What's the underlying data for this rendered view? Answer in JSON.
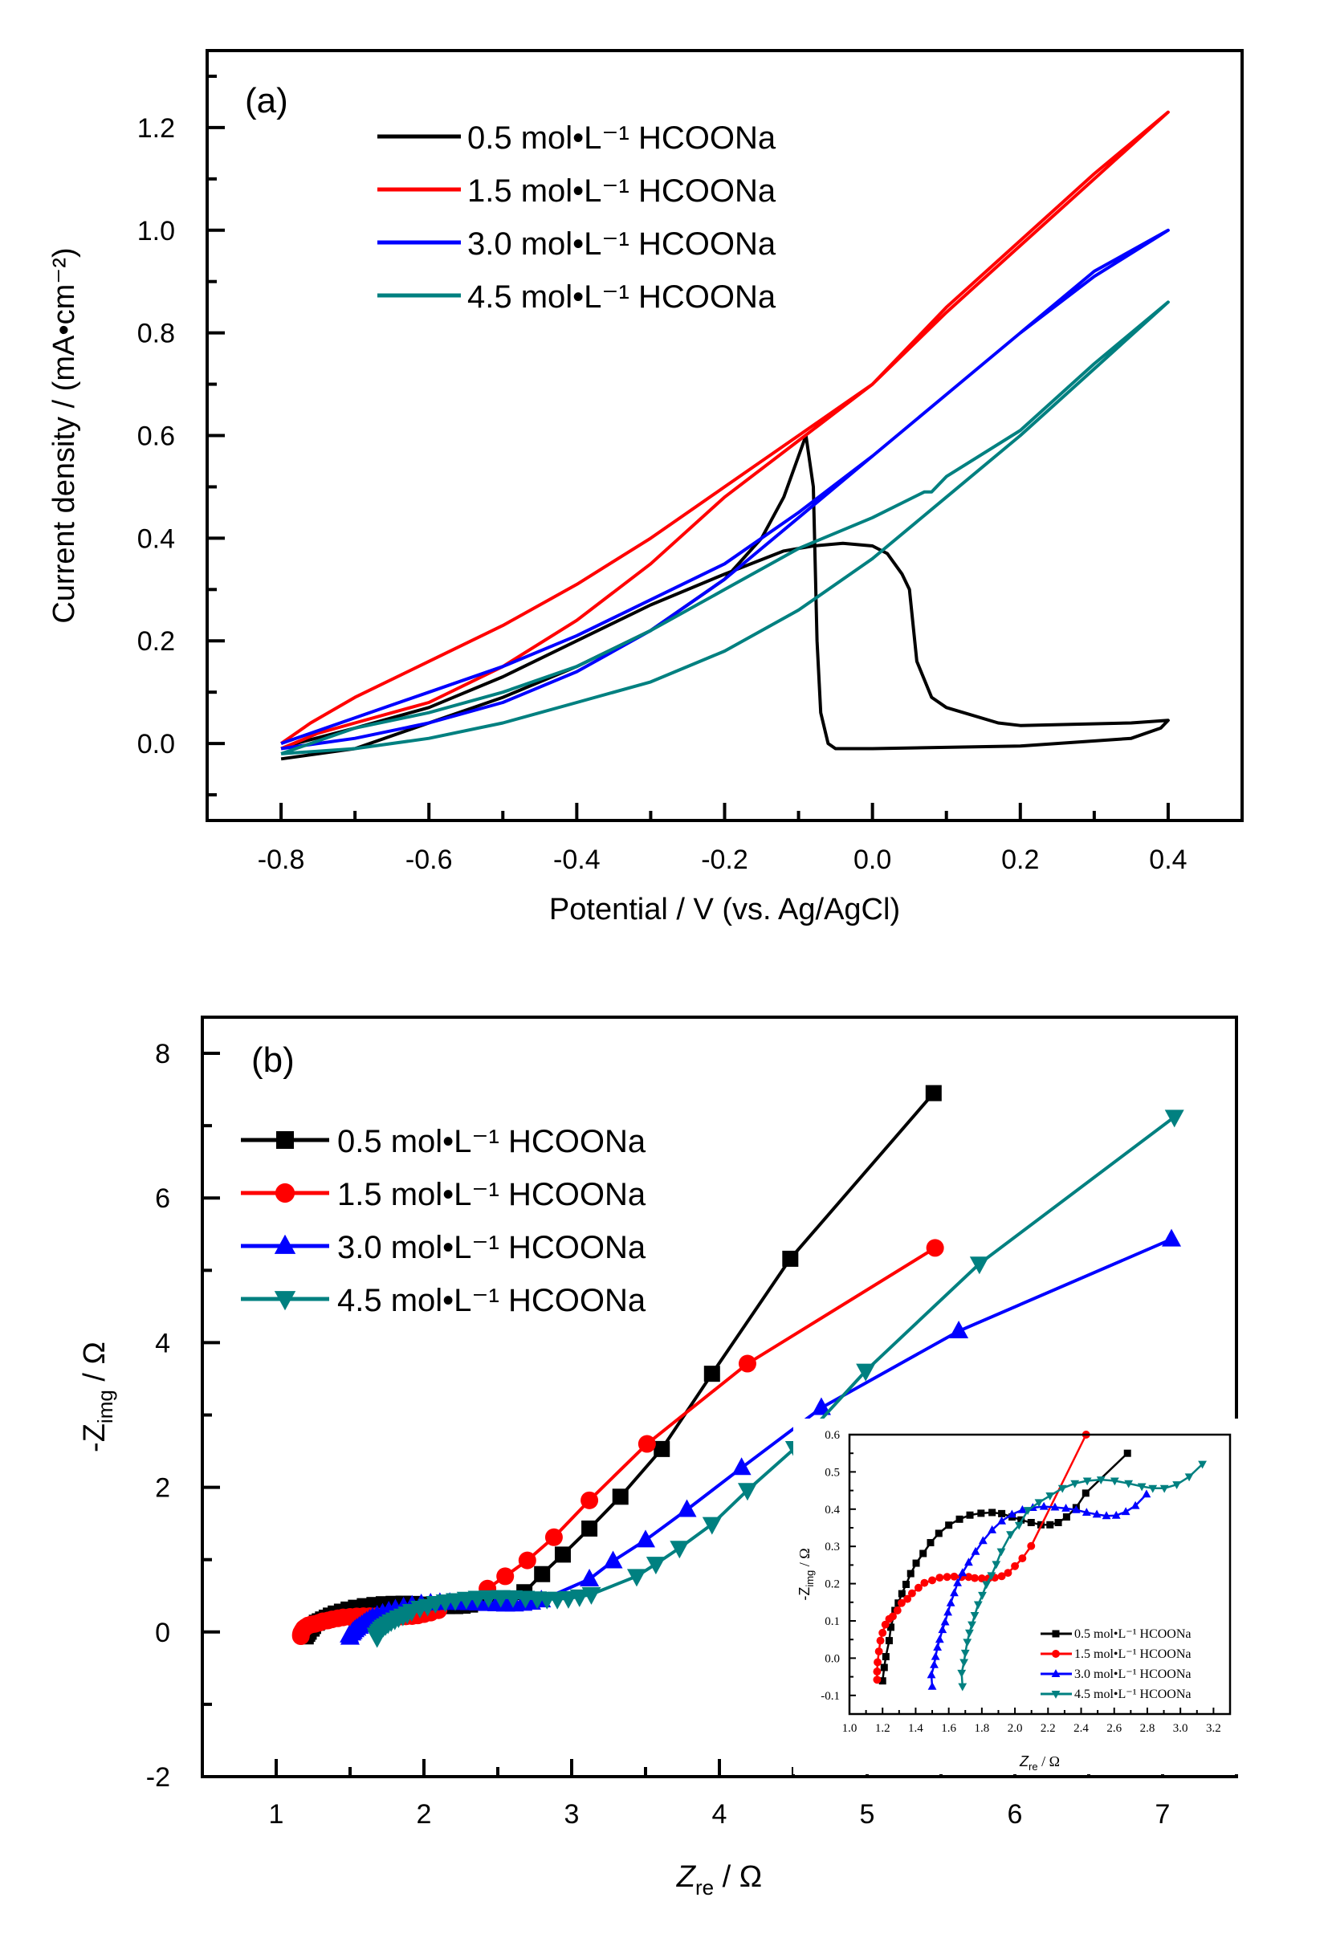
{
  "chart_data": [
    {
      "type": "line",
      "panel_label": "(a)",
      "title": "",
      "xlabel": "Potential / V (vs. Ag/AgCl)",
      "ylabel": "Current density / (mA•cm⁻²)",
      "xlim": [
        -0.9,
        0.5
      ],
      "ylim": [
        -0.15,
        1.35
      ],
      "x_ticks": [
        -0.8,
        -0.6,
        -0.4,
        -0.2,
        0.0,
        0.2,
        0.4
      ],
      "x_tick_labels": [
        "-0.8",
        "-0.6",
        "-0.4",
        "-0.2",
        "0.0",
        "0.2",
        "0.4"
      ],
      "y_ticks": [
        0.0,
        0.2,
        0.4,
        0.6,
        0.8,
        1.0,
        1.2
      ],
      "y_tick_labels": [
        "0.0",
        "0.2",
        "0.4",
        "0.6",
        "0.8",
        "1.0",
        "1.2"
      ],
      "grid": false,
      "legend_position": "top-left",
      "series": [
        {
          "name": "0.5 mol•L⁻¹ HCOONa",
          "color": "#000000",
          "x": [
            -0.8,
            -0.7,
            -0.6,
            -0.5,
            -0.4,
            -0.3,
            -0.2,
            -0.15,
            -0.12,
            -0.09,
            -0.08,
            -0.075,
            -0.07,
            -0.06,
            -0.05,
            0.0,
            0.2,
            0.35,
            0.39,
            0.4,
            0.35,
            0.2,
            0.17,
            0.1,
            0.08,
            0.06,
            0.05,
            0.04,
            0.02,
            0.0,
            -0.04,
            -0.08,
            -0.12,
            -0.2,
            -0.3,
            -0.4,
            -0.5,
            -0.6,
            -0.7,
            -0.78,
            -0.8
          ],
          "y": [
            -0.03,
            -0.01,
            0.04,
            0.09,
            0.15,
            0.22,
            0.32,
            0.4,
            0.48,
            0.6,
            0.5,
            0.2,
            0.06,
            0.0,
            -0.01,
            -0.01,
            -0.005,
            0.01,
            0.03,
            0.045,
            0.04,
            0.035,
            0.04,
            0.07,
            0.09,
            0.16,
            0.3,
            0.33,
            0.37,
            0.385,
            0.39,
            0.385,
            0.375,
            0.33,
            0.27,
            0.2,
            0.13,
            0.07,
            0.03,
            0.0,
            -0.01
          ]
        },
        {
          "name": "1.5 mol•L⁻¹ HCOONa",
          "color": "#ff0000",
          "x": [
            -0.8,
            -0.75,
            -0.7,
            -0.6,
            -0.5,
            -0.4,
            -0.3,
            -0.2,
            -0.1,
            0.0,
            0.1,
            0.2,
            0.3,
            0.4,
            0.3,
            0.2,
            0.1,
            0.0,
            -0.1,
            -0.2,
            -0.3,
            -0.4,
            -0.5,
            -0.6,
            -0.7,
            -0.76,
            -0.8
          ],
          "y": [
            -0.01,
            0.02,
            0.04,
            0.08,
            0.15,
            0.24,
            0.35,
            0.48,
            0.59,
            0.7,
            0.84,
            0.97,
            1.1,
            1.23,
            1.11,
            0.98,
            0.85,
            0.7,
            0.6,
            0.5,
            0.4,
            0.31,
            0.23,
            0.16,
            0.09,
            0.04,
            0.0
          ]
        },
        {
          "name": "3.0 mol•L⁻¹ HCOONa",
          "color": "#0000ff",
          "x": [
            -0.8,
            -0.7,
            -0.6,
            -0.5,
            -0.4,
            -0.3,
            -0.2,
            -0.1,
            0.0,
            0.1,
            0.2,
            0.3,
            0.4,
            0.3,
            0.2,
            0.1,
            0.0,
            -0.1,
            -0.2,
            -0.3,
            -0.4,
            -0.5,
            -0.6,
            -0.7,
            -0.8
          ],
          "y": [
            -0.01,
            0.01,
            0.04,
            0.08,
            0.14,
            0.22,
            0.32,
            0.44,
            0.56,
            0.68,
            0.8,
            0.92,
            1.0,
            0.91,
            0.8,
            0.68,
            0.56,
            0.45,
            0.35,
            0.28,
            0.21,
            0.15,
            0.1,
            0.05,
            0.0
          ]
        },
        {
          "name": "4.5 mol•L⁻¹ HCOONa",
          "color": "#008080",
          "x": [
            -0.8,
            -0.7,
            -0.6,
            -0.5,
            -0.4,
            -0.3,
            -0.2,
            -0.1,
            0.0,
            0.1,
            0.2,
            0.3,
            0.4,
            0.3,
            0.2,
            0.1,
            0.08,
            0.07,
            0.0,
            -0.1,
            -0.2,
            -0.3,
            -0.4,
            -0.5,
            -0.6,
            -0.7,
            -0.8
          ],
          "y": [
            -0.02,
            -0.01,
            0.01,
            0.04,
            0.08,
            0.12,
            0.18,
            0.26,
            0.36,
            0.48,
            0.6,
            0.73,
            0.86,
            0.74,
            0.61,
            0.52,
            0.49,
            0.49,
            0.44,
            0.38,
            0.3,
            0.22,
            0.15,
            0.1,
            0.06,
            0.03,
            -0.02
          ]
        }
      ]
    },
    {
      "type": "line",
      "panel_label": "(b)",
      "title": "",
      "xlabel_main": "Z",
      "xlabel_sub": "re",
      "xlabel_unit": " / Ω",
      "ylabel_main": "-Z",
      "ylabel_sub": "img",
      "ylabel_unit": " / Ω",
      "xlim": [
        0.5,
        7.5
      ],
      "ylim": [
        -2,
        8.5
      ],
      "x_ticks": [
        1,
        2,
        3,
        4,
        5,
        6,
        7
      ],
      "x_tick_labels": [
        "1",
        "2",
        "3",
        "4",
        "5",
        "6",
        "7"
      ],
      "y_ticks": [
        -2,
        0,
        2,
        4,
        6,
        8
      ],
      "y_tick_labels": [
        "-2",
        "0",
        "2",
        "4",
        "6",
        "8"
      ],
      "grid": false,
      "legend_position": "top-left",
      "series": [
        {
          "name": "0.5 mol•L⁻¹ HCOONa",
          "color": "#000000",
          "marker": "square",
          "x": [
            1.2,
            1.21,
            1.22,
            1.24,
            1.25,
            1.275,
            1.295,
            1.317,
            1.342,
            1.37,
            1.403,
            1.445,
            1.49,
            1.54,
            1.6,
            1.665,
            1.728,
            1.795,
            1.862,
            1.92,
            1.983,
            2.037,
            2.098,
            2.157,
            2.212,
            2.262,
            2.312,
            2.37,
            2.428,
            2.68,
            2.8,
            2.94,
            3.12,
            3.33,
            3.61,
            3.95,
            4.48,
            5.45
          ],
          "y": [
            -0.061,
            -0.025,
            0.004,
            0.047,
            0.083,
            0.128,
            0.148,
            0.173,
            0.198,
            0.227,
            0.255,
            0.281,
            0.31,
            0.335,
            0.357,
            0.373,
            0.384,
            0.389,
            0.391,
            0.388,
            0.379,
            0.371,
            0.364,
            0.358,
            0.358,
            0.364,
            0.379,
            0.404,
            0.443,
            0.55,
            0.8,
            1.07,
            1.43,
            1.87,
            2.53,
            3.57,
            5.16,
            7.45
          ]
        },
        {
          "name": "1.5 mol•L⁻¹ HCOONa",
          "color": "#ff0000",
          "marker": "circle",
          "x": [
            1.167,
            1.167,
            1.17,
            1.178,
            1.187,
            1.2,
            1.217,
            1.24,
            1.262,
            1.29,
            1.315,
            1.35,
            1.378,
            1.417,
            1.453,
            1.5,
            1.545,
            1.59,
            1.633,
            1.678,
            1.72,
            1.757,
            1.8,
            1.84,
            1.878,
            1.92,
            1.958,
            2.0,
            2.045,
            2.098,
            2.43,
            2.55,
            2.7,
            2.88,
            3.12,
            3.51,
            4.19,
            5.46
          ],
          "y": [
            -0.058,
            -0.036,
            -0.011,
            0.018,
            0.047,
            0.068,
            0.09,
            0.105,
            0.112,
            0.128,
            0.148,
            0.159,
            0.174,
            0.189,
            0.202,
            0.209,
            0.216,
            0.218,
            0.219,
            0.218,
            0.218,
            0.215,
            0.214,
            0.214,
            0.216,
            0.22,
            0.229,
            0.247,
            0.268,
            0.301,
            0.6,
            0.77,
            0.99,
            1.31,
            1.82,
            2.6,
            3.71,
            5.31
          ]
        },
        {
          "name": "3.0 mol•L⁻¹ HCOONa",
          "color": "#0000ff",
          "marker": "triangle-up",
          "x": [
            1.5,
            1.495,
            1.512,
            1.52,
            1.532,
            1.545,
            1.562,
            1.578,
            1.595,
            1.612,
            1.633,
            1.653,
            1.683,
            1.72,
            1.762,
            1.807,
            1.862,
            1.92,
            1.982,
            2.045,
            2.108,
            2.175,
            2.242,
            2.308,
            2.37,
            2.433,
            2.495,
            2.553,
            2.612,
            2.67,
            2.728,
            2.795,
            3.12,
            3.28,
            3.5,
            3.78,
            4.15,
            4.69,
            5.62,
            7.06
          ],
          "y": [
            -0.076,
            -0.045,
            -0.018,
            0.004,
            0.029,
            0.05,
            0.076,
            0.097,
            0.123,
            0.148,
            0.175,
            0.202,
            0.229,
            0.257,
            0.286,
            0.315,
            0.344,
            0.368,
            0.386,
            0.398,
            0.404,
            0.407,
            0.405,
            0.402,
            0.398,
            0.391,
            0.386,
            0.382,
            0.383,
            0.393,
            0.409,
            0.44,
            0.73,
            0.98,
            1.27,
            1.69,
            2.27,
            3.1,
            4.16,
            5.43
          ]
        },
        {
          "name": "4.5 mol•L⁻¹ HCOONa",
          "color": "#008080",
          "marker": "triangle-down",
          "x": [
            1.683,
            1.678,
            1.692,
            1.7,
            1.712,
            1.725,
            1.74,
            1.757,
            1.778,
            1.803,
            1.828,
            1.858,
            1.887,
            1.917,
            1.973,
            2.025,
            2.078,
            2.145,
            2.212,
            2.287,
            2.362,
            2.437,
            2.52,
            2.603,
            2.687,
            2.767,
            2.833,
            2.903,
            2.978,
            3.053,
            3.133,
            3.44,
            3.57,
            3.73,
            3.95,
            4.19,
            4.51,
            4.99,
            5.76,
            7.08
          ],
          "y": [
            -0.076,
            -0.04,
            -0.011,
            0.014,
            0.043,
            0.068,
            0.09,
            0.115,
            0.144,
            0.169,
            0.198,
            0.222,
            0.252,
            0.286,
            0.332,
            0.357,
            0.397,
            0.418,
            0.436,
            0.456,
            0.469,
            0.476,
            0.479,
            0.476,
            0.469,
            0.461,
            0.456,
            0.456,
            0.466,
            0.487,
            0.521,
            0.77,
            0.94,
            1.16,
            1.49,
            1.96,
            2.54,
            3.61,
            5.09,
            7.12
          ]
        }
      ]
    },
    {
      "type": "line",
      "panel_label": "inset",
      "title": "",
      "xlabel_main": "Z",
      "xlabel_sub": "re",
      "xlabel_unit": " / Ω",
      "ylabel_main": "-Z",
      "ylabel_sub": "img",
      "ylabel_unit": " / Ω",
      "xlim": [
        1.0,
        3.3
      ],
      "ylim": [
        -0.15,
        0.6
      ],
      "x_ticks": [
        1.0,
        1.2,
        1.4,
        1.6,
        1.8,
        2.0,
        2.2,
        2.4,
        2.6,
        2.8,
        3.0,
        3.2
      ],
      "x_tick_labels": [
        "1.0",
        "1.2",
        "1.4",
        "1.6",
        "1.8",
        "2.0",
        "2.2",
        "2.4",
        "2.6",
        "2.8",
        "3.0",
        "3.2"
      ],
      "y_ticks": [
        -0.1,
        0.0,
        0.1,
        0.2,
        0.3,
        0.4,
        0.5,
        0.6
      ],
      "y_tick_labels": [
        "-0.1",
        "0.0",
        "0.1",
        "0.2",
        "0.3",
        "0.4",
        "0.5",
        "0.6"
      ],
      "grid": false,
      "legend_position": "bottom-right",
      "series_ref": "same data as panel (b), shown for Zre 1.0-3.3"
    }
  ]
}
